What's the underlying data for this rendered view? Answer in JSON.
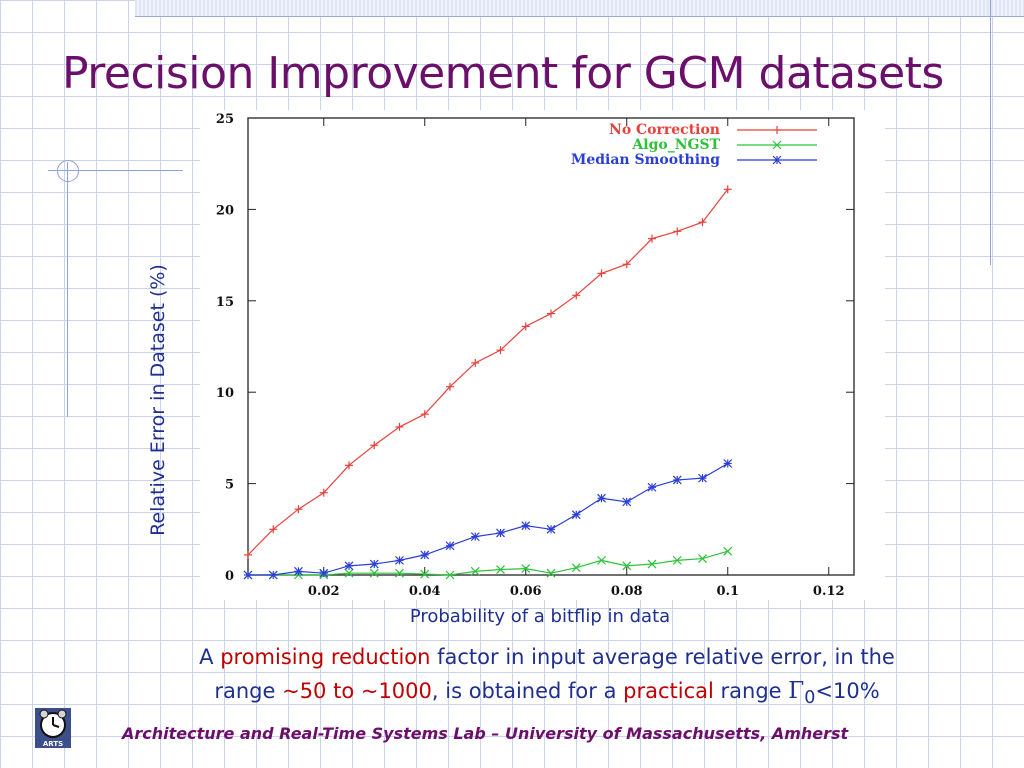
{
  "slide": {
    "title": "Precision Improvement for GCM datasets",
    "body_line1_pre": "A ",
    "body_line1_hl": "promising reduction",
    "body_line1_post": " factor in input average relative error, in the",
    "body_line2_pre": "range ",
    "body_line2_hl1": "~50 to ~1000",
    "body_line2_mid": ", is obtained for a ",
    "body_line2_hl2": "practical",
    "body_line2_post": " range ",
    "gamma_symbol": "Γ",
    "gamma_sub": "0",
    "gamma_post": "<10%",
    "footer": "Architecture and Real-Time Systems Lab – University of Massachusetts, Amherst",
    "logo_icon": "clock-logo-icon",
    "logo_text": "ARTS"
  },
  "chart_data": {
    "type": "line",
    "title": "",
    "xlabel": "Probability of a bitflip in data",
    "ylabel": "Relative Error in Dataset (%)",
    "xlim": [
      0.005,
      0.125
    ],
    "ylim": [
      0,
      25
    ],
    "x_ticks": [
      "0.02",
      "0.04",
      "0.06",
      "0.08",
      "0.1",
      "0.12"
    ],
    "x_tick_values": [
      0.02,
      0.04,
      0.06,
      0.08,
      0.1,
      0.12
    ],
    "y_ticks": [
      "0",
      "5",
      "10",
      "15",
      "20",
      "25"
    ],
    "y_tick_values": [
      0,
      5,
      10,
      15,
      20,
      25
    ],
    "legend_position": "top-right",
    "x": [
      0.005,
      0.01,
      0.015,
      0.02,
      0.025,
      0.03,
      0.035,
      0.04,
      0.045,
      0.05,
      0.055,
      0.06,
      0.065,
      0.07,
      0.075,
      0.08,
      0.085,
      0.09,
      0.095,
      0.1
    ],
    "series": [
      {
        "name": "No Correction",
        "color": "#e8413b",
        "marker": "+",
        "values": [
          1.1,
          2.5,
          3.6,
          4.5,
          6.0,
          7.1,
          8.1,
          8.8,
          10.3,
          11.6,
          12.3,
          13.6,
          14.3,
          15.3,
          16.5,
          17.0,
          18.4,
          18.8,
          19.3,
          21.1
        ]
      },
      {
        "name": "Algo_NGST",
        "color": "#2ec23a",
        "marker": "x",
        "values": [
          0.0,
          0.0,
          0.0,
          0.0,
          0.1,
          0.1,
          0.1,
          0.05,
          0.0,
          0.2,
          0.3,
          0.35,
          0.1,
          0.4,
          0.8,
          0.5,
          0.6,
          0.8,
          0.9,
          1.3
        ]
      },
      {
        "name": "Median Smoothing",
        "color": "#2b3fd6",
        "marker": "*",
        "values": [
          0.0,
          0.0,
          0.2,
          0.1,
          0.5,
          0.6,
          0.8,
          1.1,
          1.6,
          2.1,
          2.3,
          2.7,
          2.5,
          3.3,
          4.2,
          4.0,
          4.8,
          5.2,
          5.3,
          6.1
        ]
      }
    ]
  }
}
